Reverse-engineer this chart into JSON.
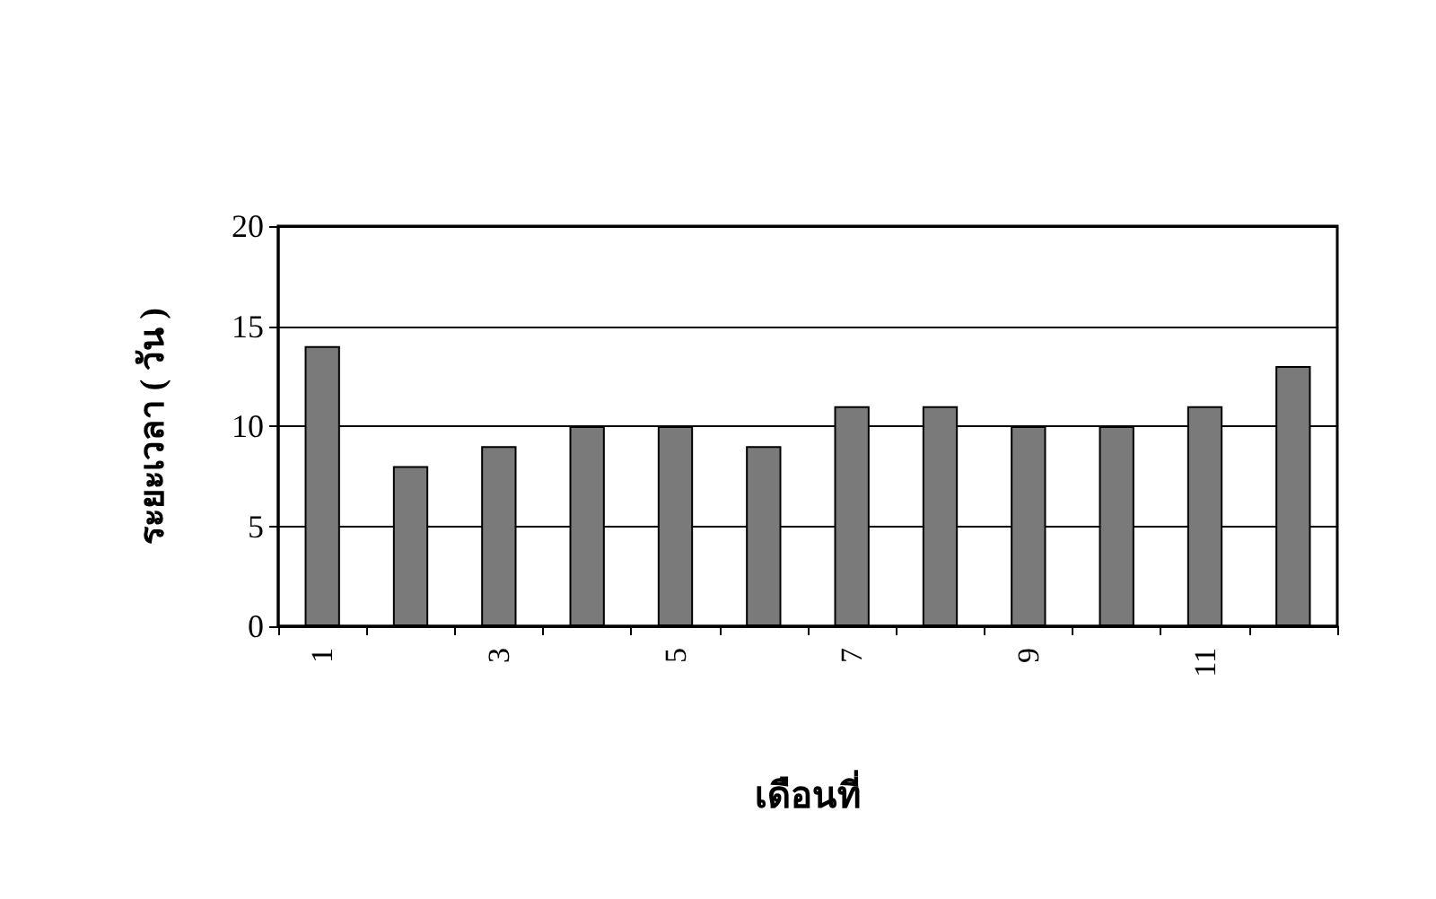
{
  "chart_data": {
    "type": "bar",
    "xlabel": "เดือนที่",
    "ylabel": "ระยะเวลา ( วัน )",
    "categories": [
      "1",
      null,
      "3",
      null,
      "5",
      null,
      "7",
      null,
      "9",
      null,
      "11",
      null
    ],
    "values": [
      14,
      8,
      9,
      10,
      10,
      9,
      11,
      11,
      10,
      10,
      11,
      13
    ],
    "color": "#7a7a7a",
    "ylim": [
      0,
      20
    ],
    "yticks": [
      0,
      5,
      10,
      15,
      20
    ],
    "grid": "y"
  }
}
